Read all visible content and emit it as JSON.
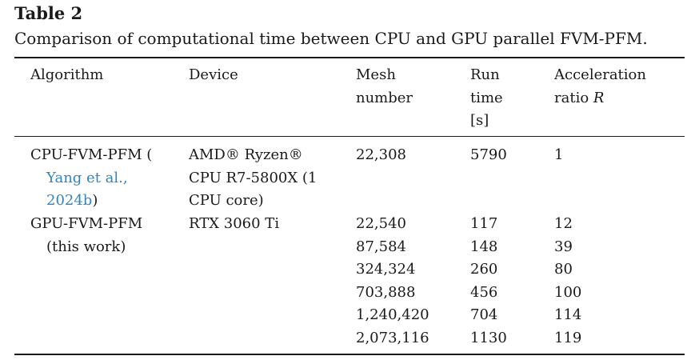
{
  "caption": {
    "label": "Table 2",
    "text": "Comparison of computational time between CPU and GPU parallel FVM-PFM."
  },
  "headers": {
    "algorithm": "Algorithm",
    "device": "Device",
    "mesh_l1": "Mesh",
    "mesh_l2": "number",
    "run_l1": "Run",
    "run_l2": "time",
    "run_l3": "[s]",
    "acc_l1": "Acceleration",
    "acc_l2": "ratio ",
    "acc_var": "R"
  },
  "rows": [
    {
      "algorithm_l1": "CPU-FVM-PFM (",
      "algorithm_ref1": "Yang et al.,",
      "algorithm_ref2": "2024b",
      "algorithm_close": ")",
      "device_l1": "AMD® Ryzen®",
      "device_l2": "CPU R7-5800X (1",
      "device_l3": "CPU core)",
      "mesh": [
        "22,308"
      ],
      "time": [
        "5790"
      ],
      "ratio": [
        "1"
      ]
    },
    {
      "algorithm_l1": "GPU-FVM-PFM",
      "algorithm_l2": "(this work)",
      "device_l1": "RTX 3060 Ti",
      "mesh": [
        "22,540",
        "87,584",
        "324,324",
        "703,888",
        "1,240,420",
        "2,073,116"
      ],
      "time": [
        "117",
        "148",
        "260",
        "456",
        "704",
        "1130"
      ],
      "ratio": [
        "12",
        "39",
        "80",
        "100",
        "114",
        "119"
      ]
    }
  ]
}
